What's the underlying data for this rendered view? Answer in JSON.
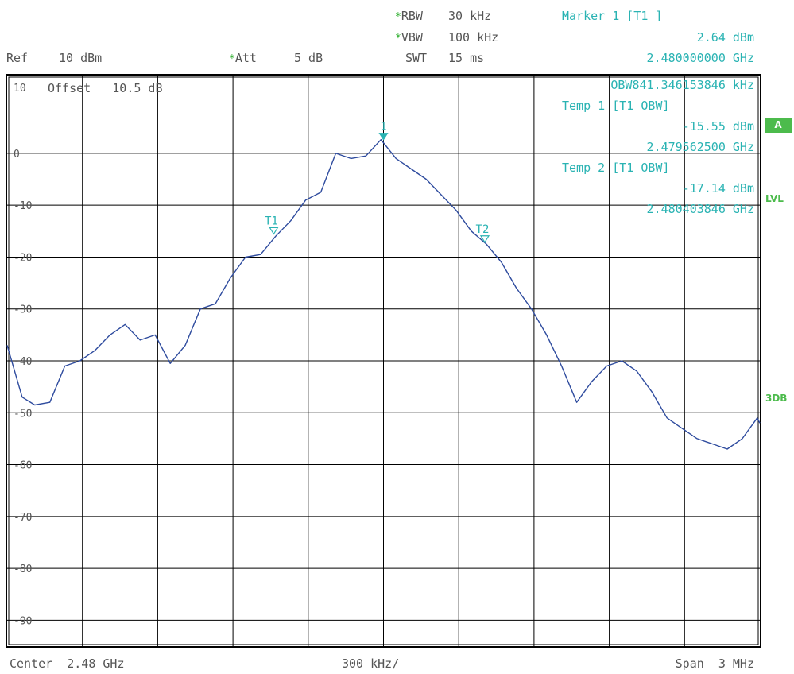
{
  "header": {
    "rbw_label": "RBW",
    "rbw_value": "30 kHz",
    "vbw_label": "VBW",
    "vbw_value": "100 kHz",
    "swt_label": "SWT",
    "swt_value": "15 ms",
    "ref_label": "Ref",
    "ref_value": "10 dBm",
    "att_label": "Att",
    "att_value": "5 dB",
    "star": "*",
    "offset_text": "Offset   10.5 dB"
  },
  "marker_box": {
    "line1": "Marker 1 [T1 ]",
    "line2": "2.64 dBm",
    "line3": "2.480000000 GHz",
    "line4": "OBW841.346153846 kHz",
    "line5": "Temp 1 [T1 OBW]",
    "line6": "-15.55 dBm",
    "line7": "2.479562500 GHz",
    "line8": "Temp 2 [T1 OBW]",
    "line9": "-17.14 dBm",
    "line10": "2.480403846 GHz"
  },
  "side_labels": {
    "a": "A",
    "lvl": "LVL",
    "threedb": "3DB"
  },
  "footer": {
    "center": "Center  2.48 GHz",
    "scale": "300 kHz/",
    "span": "Span  3 MHz"
  },
  "colors": {
    "trace": "#2e4b9e",
    "marker": "#2ab3b3",
    "grid": "#000000",
    "side": "#4cbb4c"
  },
  "chart_data": {
    "type": "line",
    "title": "",
    "xlabel": "",
    "ylabel": "",
    "x_unit": "GHz",
    "y_unit": "dBm",
    "xlim": [
      2.4785,
      2.4815
    ],
    "ylim": [
      -95,
      15
    ],
    "ytick_labels": [
      "10",
      "0",
      "-10",
      "-20",
      "-30",
      "-40",
      "-50",
      "-60",
      "-70",
      "-80",
      "-90"
    ],
    "ytick_values": [
      10,
      0,
      -10,
      -20,
      -30,
      -40,
      -50,
      -60,
      -70,
      -80,
      -90
    ],
    "grid": true,
    "series": [
      {
        "x": [
          2.4785,
          2.47856,
          2.47861,
          2.47867,
          2.47873,
          2.47879,
          2.47885,
          2.47891,
          2.47897,
          2.47903,
          2.47909,
          2.47915,
          2.47921,
          2.47927,
          2.47933,
          2.47939,
          2.47945,
          2.47951,
          2.47957,
          2.47963,
          2.47969,
          2.47975,
          2.47981,
          2.47987,
          2.47993,
          2.47999,
          2.48005,
          2.48011,
          2.48017,
          2.48023,
          2.48029,
          2.48035,
          2.48041,
          2.48047,
          2.48053,
          2.48059,
          2.48065,
          2.48071,
          2.48077,
          2.48083,
          2.48089,
          2.48095,
          2.48101,
          2.48107,
          2.48113,
          2.48119,
          2.48125,
          2.48131,
          2.48137,
          2.48143,
          2.48149,
          2.4815
        ],
        "y": [
          -37,
          -47,
          -48.5,
          -48,
          -41,
          -40,
          -38,
          -35,
          -33,
          -36,
          -35,
          -40.5,
          -37,
          -30,
          -29,
          -24,
          -20,
          -19.5,
          -16,
          -13,
          -9,
          -7.5,
          0,
          -1,
          -0.5,
          2.64,
          -1,
          -3,
          -5,
          -8,
          -11,
          -15,
          -17.5,
          -21,
          -26,
          -30,
          -35,
          -41,
          -48,
          -44,
          -41,
          -40,
          -42,
          -46,
          -51,
          -53,
          -55,
          -56,
          -57,
          -55,
          -51,
          -52
        ]
      }
    ],
    "markers": [
      {
        "name": "1",
        "x": 2.48,
        "y": 2.64,
        "filled": true
      },
      {
        "name": "T1",
        "x": 2.4795625,
        "y": -15.55,
        "filled": false
      },
      {
        "name": "T2",
        "x": 2.480403846,
        "y": -17.14,
        "filled": false
      }
    ]
  }
}
